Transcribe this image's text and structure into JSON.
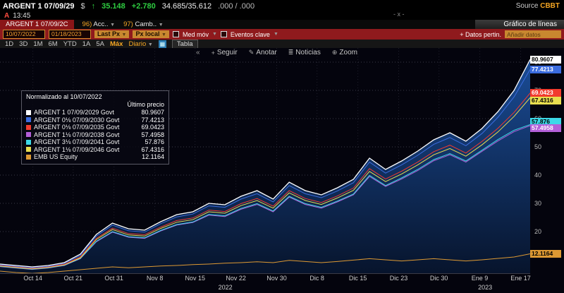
{
  "titlebar": {
    "security": "ARGENT 1 07/09/29",
    "currency": "$",
    "arrow": "↑",
    "price": "35.148",
    "change": "+2.780",
    "bid_ask": "34.685/35.612",
    "alt_quote": ".000 / .000",
    "source_label": "Source",
    "source_value": "CBBT",
    "session_flag": "A",
    "time": "13:45",
    "window_controls": "- x -"
  },
  "menubar": {
    "tab_label": "ARGENT 1 07/09/2C",
    "items": [
      {
        "num": "96)",
        "label": "Acc..",
        "caret": "▼"
      },
      {
        "num": "97)",
        "label": "Camb..",
        "caret": "▼"
      }
    ],
    "screen_title": "Gráfico de líneas"
  },
  "toolbar": {
    "date_from": "10/07/2022",
    "date_to": "01/18/2023",
    "price_source": "Last Px",
    "price_source_caret": "▼",
    "local_px": "Px local",
    "local_px_caret": "▼",
    "mavg_label": "Med móv",
    "mavg_caret": "▼",
    "events_label": "Eventos clave",
    "events_caret": "▼",
    "related_data_label": "+ Datos pertin.",
    "add_data_placeholder": "Añadir datos"
  },
  "rangebar": {
    "ranges": [
      "1D",
      "3D",
      "1M",
      "6M",
      "YTD",
      "1A",
      "5A",
      "Máx"
    ],
    "active_range": "Máx",
    "period": "Diario",
    "period_caret": "▼",
    "chart_type_icon": "▦",
    "table_label": "Tabla",
    "collapse_icon": "«",
    "actions": [
      {
        "icon": "+",
        "label": "Seguir"
      },
      {
        "icon": "✎",
        "label": "Anotar"
      },
      {
        "icon": "≣",
        "label": "Noticias"
      },
      {
        "icon": "⊕",
        "label": "Zoom"
      }
    ]
  },
  "legend": {
    "title": "Normalizado al 10/07/2022",
    "subtitle": "Último precio"
  },
  "chart_data": {
    "type": "line",
    "title": "Gráfico de líneas",
    "normalized_to": "10/07/2022",
    "xlabel": "",
    "ylabel": "",
    "ylim": [
      5,
      85
    ],
    "y_ticks": [
      80,
      70,
      60,
      50,
      40,
      30,
      20
    ],
    "grid": "dotted",
    "legend_position": "top-left",
    "area_fill_top": "#1a4c96",
    "area_fill_bottom": "#07142c",
    "x_ticks": [
      {
        "label": "Oct 14",
        "f": 0.062
      },
      {
        "label": "Oct 21",
        "f": 0.138
      },
      {
        "label": "Oct 31",
        "f": 0.215
      },
      {
        "label": "Nov 8",
        "f": 0.292
      },
      {
        "label": "Nov 15",
        "f": 0.368
      },
      {
        "label": "Nov 22",
        "f": 0.445
      },
      {
        "label": "Nov 30",
        "f": 0.522
      },
      {
        "label": "Dic 8",
        "f": 0.598
      },
      {
        "label": "Dic 15",
        "f": 0.675
      },
      {
        "label": "Dic 23",
        "f": 0.752
      },
      {
        "label": "Dic 30",
        "f": 0.828
      },
      {
        "label": "Ene 9",
        "f": 0.905
      },
      {
        "label": "Ene 17",
        "f": 0.982
      }
    ],
    "years": [
      {
        "label": "2022",
        "f": 0.425
      },
      {
        "label": "2023",
        "f": 0.915
      }
    ],
    "series": [
      {
        "name": "ARGENT 1 07/09/2029 Govt",
        "last": "80.9607",
        "color": "#ffffff",
        "tag_fg": "#000000",
        "draw_z": 6,
        "tag_z": 9,
        "tag_dy": 0,
        "width": 1.3,
        "values": [
          8.5,
          8,
          7.5,
          8,
          9,
          12,
          19,
          23,
          21,
          20.5,
          23.5,
          26,
          27,
          30,
          29.5,
          32.5,
          34.5,
          31.5,
          37.5,
          34.5,
          33,
          35.5,
          38.5,
          46,
          42,
          45,
          48.5,
          52.5,
          55,
          52,
          56.5,
          62.5,
          70,
          80.96
        ]
      },
      {
        "name": "ARGENT 0⅛ 07/09/2030 Govt",
        "last": "77.4213",
        "color": "#3b6cdf",
        "tag_fg": "#ffffff",
        "draw_z": 5,
        "tag_z": 8,
        "tag_dy": 0,
        "width": 1,
        "values": [
          8.2,
          7.7,
          7.2,
          7.7,
          8.7,
          11.5,
          18.4,
          22.3,
          20.3,
          19.8,
          22.8,
          25.2,
          26.2,
          29.1,
          28.6,
          31.5,
          33.4,
          30.5,
          36.3,
          33.4,
          32,
          34.4,
          37.3,
          44.6,
          40.7,
          43.6,
          47,
          50.9,
          53.3,
          50.4,
          54.7,
          60.5,
          67.7,
          77.42
        ]
      },
      {
        "name": "ARGENT 0⅛ 07/09/2035 Govt",
        "last": "69.0423",
        "color": "#f23b2e",
        "tag_fg": "#ffffff",
        "draw_z": 4,
        "tag_z": 7,
        "tag_dy": 0,
        "width": 1,
        "values": [
          8,
          7.5,
          7,
          7.5,
          8.4,
          11,
          17.6,
          21.2,
          19.3,
          18.9,
          21.6,
          23.9,
          24.8,
          27.6,
          27.1,
          29.9,
          31.7,
          29,
          34.5,
          31.7,
          30.3,
          32.6,
          35.4,
          42.3,
          38.6,
          41.4,
          44.6,
          48.3,
          50.6,
          47.8,
          51.9,
          56.6,
          62.2,
          69.04
        ]
      },
      {
        "name": "ARGENT 1⅛ 07/09/2038 Govt",
        "last": "57.4958",
        "color": "#b35fd9",
        "tag_fg": "#ffffff",
        "draw_z": 1,
        "tag_z": 5,
        "tag_dy": 3,
        "width": 1,
        "values": [
          7.6,
          7.1,
          6.6,
          7.1,
          8,
          10.4,
          16.4,
          19.8,
          18,
          17.6,
          20.2,
          22.3,
          23.2,
          25.8,
          25.3,
          27.9,
          29.6,
          27,
          32.2,
          29.6,
          28.3,
          30.5,
          33,
          39.5,
          36,
          38.6,
          41.6,
          45.1,
          47.2,
          44.6,
          48.4,
          52.1,
          55.4,
          57.5
        ]
      },
      {
        "name": "ARGENT 3⅛ 07/09/2041 Govt",
        "last": "57.876",
        "color": "#3cd9e8",
        "tag_fg": "#000000",
        "draw_z": 2,
        "tag_z": 4,
        "tag_dy": -4,
        "width": 1,
        "values": [
          7.7,
          7.2,
          6.7,
          7.2,
          8.1,
          10.5,
          16.6,
          20,
          18.2,
          17.8,
          20.4,
          22.5,
          23.4,
          26.1,
          25.6,
          28.2,
          29.9,
          27.3,
          32.5,
          29.9,
          28.6,
          30.8,
          33.3,
          39.9,
          36.3,
          39,
          42,
          45.5,
          47.6,
          45,
          48.8,
          52.6,
          55.9,
          57.88
        ]
      },
      {
        "name": "ARGENT 1⅛ 07/09/2046 Govt",
        "last": "67.4316",
        "color": "#e8de4f",
        "tag_fg": "#000000",
        "draw_z": 3,
        "tag_z": 6,
        "tag_dy": 4,
        "width": 1,
        "values": [
          7.8,
          7.3,
          6.8,
          7.3,
          8.2,
          10.7,
          17.2,
          20.7,
          18.8,
          18.4,
          21.1,
          23.3,
          24.2,
          27,
          26.5,
          29.2,
          31,
          28.3,
          33.7,
          31,
          29.6,
          31.9,
          34.6,
          41.3,
          37.7,
          40.4,
          43.6,
          47.2,
          49.4,
          46.7,
          50.7,
          55.3,
          60.8,
          67.43
        ]
      },
      {
        "name": "EMB US Equity",
        "last": "12.1164",
        "color": "#dd9933",
        "tag_fg": "#000000",
        "draw_z": 7,
        "tag_z": 3,
        "tag_dy": 0,
        "width": 1,
        "values": [
          6,
          5.5,
          5.2,
          5.5,
          6,
          6.5,
          7,
          7.5,
          7.2,
          7.5,
          7.8,
          8,
          8.3,
          8.5,
          8.8,
          9,
          9.3,
          9,
          9.8,
          9.4,
          9,
          9.4,
          9.9,
          10.4,
          10,
          9.6,
          10,
          10.4,
          10,
          9.6,
          10,
          10.5,
          11,
          12.12
        ]
      }
    ]
  }
}
